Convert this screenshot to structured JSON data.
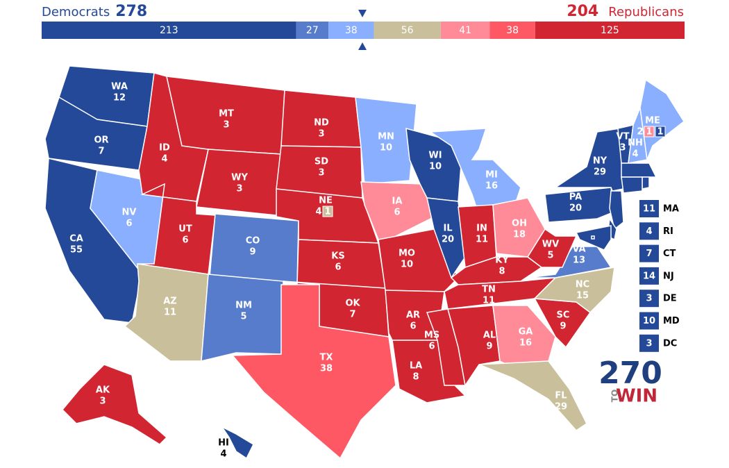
{
  "header": {
    "left_label": "Democrats",
    "left_total": 278,
    "right_total": 204,
    "right_label": "Republicans",
    "left_color": "#244999",
    "right_color": "#d22532"
  },
  "rating_colors": [
    "#244999",
    "#577ccc",
    "#8aafff",
    "#c9c09b",
    "#ff8b98",
    "#ff5865",
    "#d22532"
  ],
  "bar": {
    "values": [
      213,
      27,
      38,
      56,
      41,
      38,
      125
    ]
  },
  "states": [
    {
      "abbr": "WA",
      "ev": 12,
      "rating": 0
    },
    {
      "abbr": "OR",
      "ev": 7,
      "rating": 0
    },
    {
      "abbr": "CA",
      "ev": 55,
      "rating": 0
    },
    {
      "abbr": "NV",
      "ev": 6,
      "rating": 2
    },
    {
      "abbr": "ID",
      "ev": 4,
      "rating": 6
    },
    {
      "abbr": "MT",
      "ev": 3,
      "rating": 6
    },
    {
      "abbr": "WY",
      "ev": 3,
      "rating": 6
    },
    {
      "abbr": "UT",
      "ev": 6,
      "rating": 6
    },
    {
      "abbr": "CO",
      "ev": 9,
      "rating": 1
    },
    {
      "abbr": "AZ",
      "ev": 11,
      "rating": 3
    },
    {
      "abbr": "NM",
      "ev": 5,
      "rating": 1
    },
    {
      "abbr": "ND",
      "ev": 3,
      "rating": 6
    },
    {
      "abbr": "SD",
      "ev": 3,
      "rating": 6
    },
    {
      "abbr": "NE",
      "ev": 4,
      "rating": 6,
      "districts": [
        {
          "ev": 1,
          "rating": 3
        }
      ]
    },
    {
      "abbr": "KS",
      "ev": 6,
      "rating": 6
    },
    {
      "abbr": "OK",
      "ev": 7,
      "rating": 6
    },
    {
      "abbr": "TX",
      "ev": 38,
      "rating": 5
    },
    {
      "abbr": "MN",
      "ev": 10,
      "rating": 2
    },
    {
      "abbr": "IA",
      "ev": 6,
      "rating": 4
    },
    {
      "abbr": "MO",
      "ev": 10,
      "rating": 6
    },
    {
      "abbr": "AR",
      "ev": 6,
      "rating": 6
    },
    {
      "abbr": "LA",
      "ev": 8,
      "rating": 6
    },
    {
      "abbr": "WI",
      "ev": 10,
      "rating": 0
    },
    {
      "abbr": "IL",
      "ev": 20,
      "rating": 0
    },
    {
      "abbr": "MI",
      "ev": 16,
      "rating": 2
    },
    {
      "abbr": "IN",
      "ev": 11,
      "rating": 6
    },
    {
      "abbr": "OH",
      "ev": 18,
      "rating": 4
    },
    {
      "abbr": "KY",
      "ev": 8,
      "rating": 6
    },
    {
      "abbr": "TN",
      "ev": 11,
      "rating": 6
    },
    {
      "abbr": "MS",
      "ev": 6,
      "rating": 6
    },
    {
      "abbr": "AL",
      "ev": 9,
      "rating": 6
    },
    {
      "abbr": "GA",
      "ev": 16,
      "rating": 4
    },
    {
      "abbr": "FL",
      "ev": 29,
      "rating": 3
    },
    {
      "abbr": "SC",
      "ev": 9,
      "rating": 6
    },
    {
      "abbr": "NC",
      "ev": 15,
      "rating": 3
    },
    {
      "abbr": "VA",
      "ev": 13,
      "rating": 1
    },
    {
      "abbr": "WV",
      "ev": 5,
      "rating": 6
    },
    {
      "abbr": "PA",
      "ev": 20,
      "rating": 0
    },
    {
      "abbr": "NY",
      "ev": 29,
      "rating": 0
    },
    {
      "abbr": "VT",
      "ev": 3,
      "rating": 0
    },
    {
      "abbr": "NH",
      "ev": 4,
      "rating": 2
    },
    {
      "abbr": "ME",
      "ev": 2,
      "rating": 2,
      "districts": [
        {
          "ev": 1,
          "rating": 4
        },
        {
          "ev": 1,
          "rating": 0
        }
      ]
    },
    {
      "abbr": "AK",
      "ev": 3,
      "rating": 6
    },
    {
      "abbr": "HI",
      "ev": 4,
      "rating": 0
    }
  ],
  "small_states": [
    {
      "abbr": "MA",
      "ev": 11,
      "rating": 0
    },
    {
      "abbr": "RI",
      "ev": 4,
      "rating": 0
    },
    {
      "abbr": "CT",
      "ev": 7,
      "rating": 0
    },
    {
      "abbr": "NJ",
      "ev": 14,
      "rating": 0
    },
    {
      "abbr": "DE",
      "ev": 3,
      "rating": 0
    },
    {
      "abbr": "MD",
      "ev": 10,
      "rating": 0
    },
    {
      "abbr": "DC",
      "ev": 3,
      "rating": 0
    }
  ],
  "logo": {
    "number": "270",
    "to": "TO",
    "win": "WIN"
  }
}
